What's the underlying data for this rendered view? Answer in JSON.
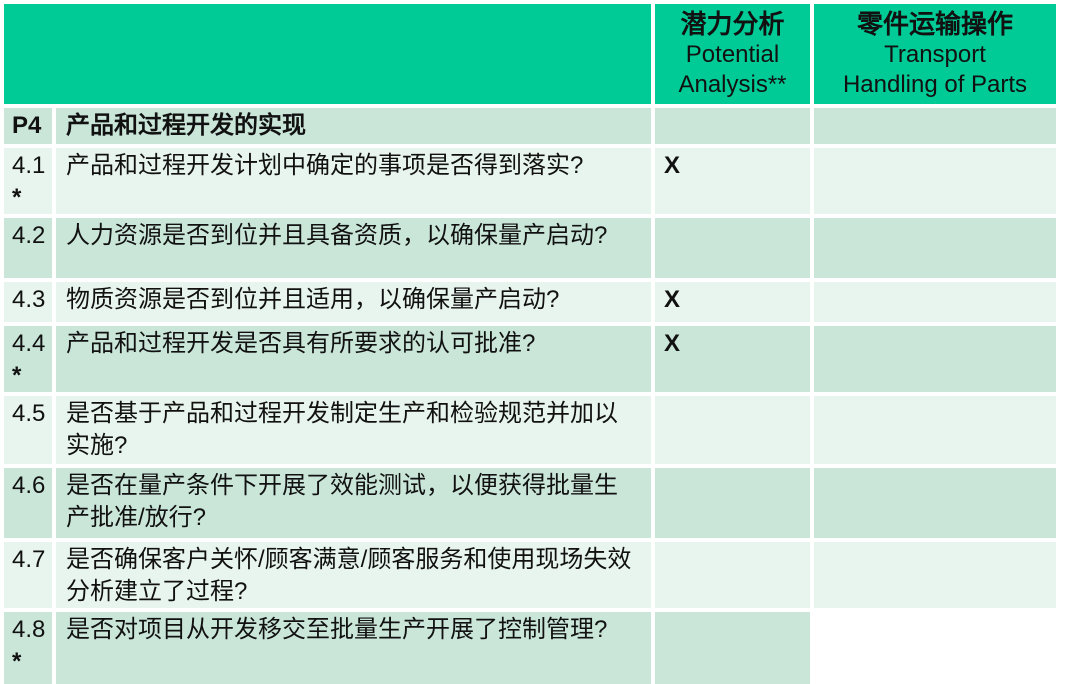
{
  "header": {
    "spacer": "",
    "col_potential": {
      "zh": "潜力分析",
      "en1": "Potential",
      "en2": "Analysis**"
    },
    "col_transport": {
      "zh": "零件运输操作",
      "en1": "Transport",
      "en2": "Handling of Parts"
    }
  },
  "colors": {
    "header_green": "#00cb96",
    "band_dark": "#cae6d9",
    "band_light": "#e8f4ee",
    "text": "#111111"
  },
  "table": {
    "rows": [
      {
        "id": "P4",
        "star": "",
        "question": "产品和过程开发的实现",
        "potential": "",
        "transport": ""
      },
      {
        "id": "4.1",
        "star": "*",
        "question": "产品和过程开发计划中确定的事项是否得到落实?",
        "potential": "X",
        "transport": ""
      },
      {
        "id": "4.2",
        "star": "",
        "question": "人力资源是否到位并且具备资质，以确保量产启动?",
        "potential": "",
        "transport": ""
      },
      {
        "id": "4.3",
        "star": "",
        "question": "物质资源是否到位并且适用，以确保量产启动?",
        "potential": "X",
        "transport": ""
      },
      {
        "id": "4.4",
        "star": "*",
        "question": "产品和过程开发是否具有所要求的认可批准?",
        "potential": "X",
        "transport": ""
      },
      {
        "id": "4.5",
        "star": "",
        "question": "是否基于产品和过程开发制定生产和检验规范并加以实施?",
        "potential": "",
        "transport": ""
      },
      {
        "id": "4.6",
        "star": "",
        "question": "是否在量产条件下开展了效能测试，以便获得批量生产批准/放行?",
        "potential": "",
        "transport": ""
      },
      {
        "id": "4.7",
        "star": "",
        "question": "是否确保客户关怀/顾客满意/顾客服务和使用现场失效分析建立了过程?",
        "potential": "",
        "transport": ""
      },
      {
        "id": "4.8",
        "star": "*",
        "question": "是否对项目从开发移交至批量生产开展了控制管理?",
        "potential": "",
        "transport": ""
      }
    ]
  }
}
